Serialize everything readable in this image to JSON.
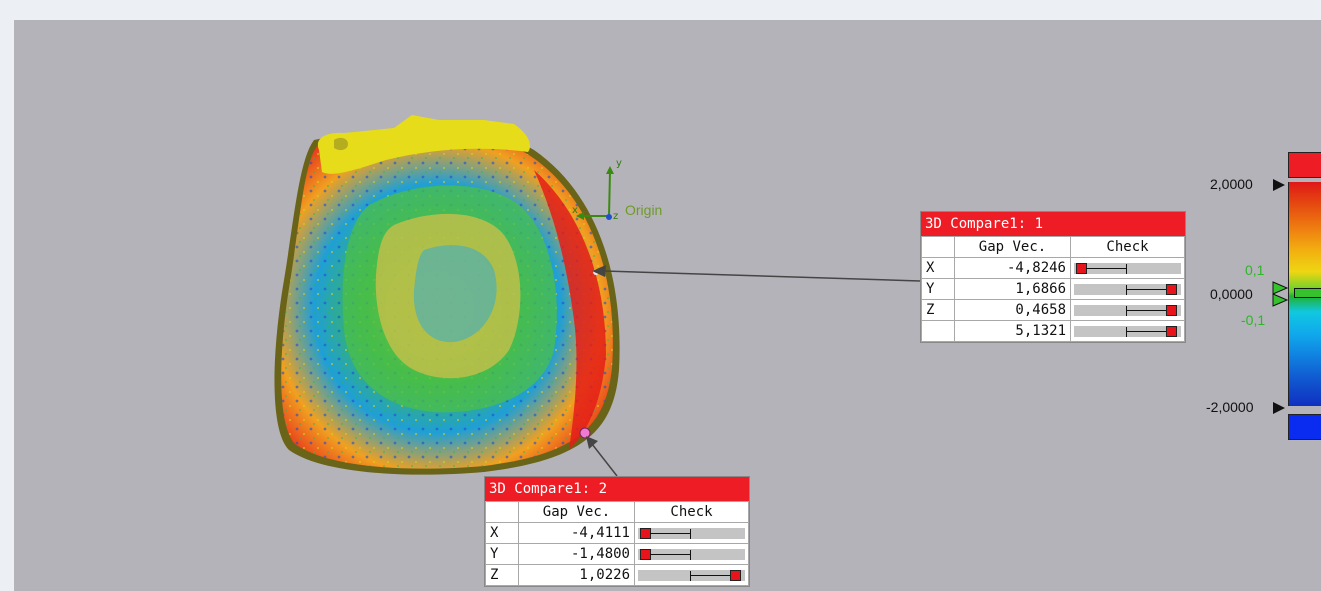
{
  "viewport": {
    "origin_label": "Origin",
    "axis_labels": {
      "x": "x",
      "y": "y",
      "z": "z"
    }
  },
  "callouts": [
    {
      "title": "3D Compare1: 1",
      "headers": {
        "value": "Gap Vec.",
        "check": "Check"
      },
      "rows": [
        {
          "axis": "X",
          "value": "-4,8246",
          "marker": "left"
        },
        {
          "axis": "Y",
          "value": "1,6866",
          "marker": "right"
        },
        {
          "axis": "Z",
          "value": "0,4658",
          "marker": "right"
        },
        {
          "axis": "",
          "value": "5,1321",
          "marker": "right"
        }
      ]
    },
    {
      "title": "3D Compare1: 2",
      "headers": {
        "value": "Gap Vec.",
        "check": "Check"
      },
      "rows": [
        {
          "axis": "X",
          "value": "-4,4111",
          "marker": "left"
        },
        {
          "axis": "Y",
          "value": "-1,4800",
          "marker": "left"
        },
        {
          "axis": "Z",
          "value": "1,0226",
          "marker": "right"
        }
      ]
    }
  ],
  "color_scale": {
    "max_label": "2,0000",
    "zero_label": "0,0000",
    "min_label": "-2,0000",
    "upper_tol": "0,1",
    "lower_tol": "-0,1",
    "colors": {
      "above": "#ee1c24",
      "below": "#0a2cf0",
      "nominal": "#36c22c"
    }
  }
}
